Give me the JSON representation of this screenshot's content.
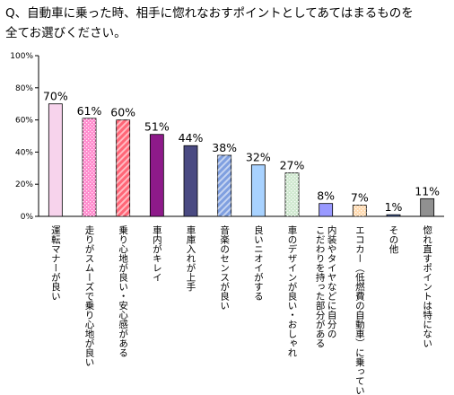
{
  "chart_data": {
    "type": "bar",
    "title": "Q、自動車に乗った時、相手に惚れなおすポイントとしてあてはまるものを\n全てお選びください。",
    "y_axis": {
      "ylim": [
        0,
        100
      ],
      "ticks": [
        0,
        20,
        40,
        60,
        80,
        100
      ],
      "tick_labels": [
        "0%",
        "20%",
        "40%",
        "60%",
        "80%",
        "100%"
      ]
    },
    "grid": false,
    "categories": [
      "運転マナーが良い",
      "走りがスムーズで乗り心地が良い",
      "乗り心地が良い・安心感がある",
      "車内がキレイ",
      "車庫入れが上手",
      "音楽のセンスが良い",
      "良いニオイがする",
      "車のデザインが良い・おしゃれ",
      "内装やタイヤなどに自分の\nこだわりを持った部分がある",
      "エコカー（低燃費の自動車）に乗っている",
      "その他",
      "惚れ直すポイントは特にない"
    ],
    "values": [
      70,
      61,
      60,
      51,
      44,
      38,
      32,
      27,
      8,
      7,
      1,
      11
    ],
    "value_labels": [
      "70%",
      "61%",
      "60%",
      "51%",
      "44%",
      "38%",
      "32%",
      "27%",
      "8%",
      "7%",
      "1%",
      "11%"
    ],
    "bar_styles": [
      {
        "fill": "#f7d3ec",
        "pattern": "none"
      },
      {
        "fill": "#ff88cc",
        "pattern": "dots"
      },
      {
        "fill": "#ff6677",
        "pattern": "diag"
      },
      {
        "fill": "#8e1a8a",
        "pattern": "none"
      },
      {
        "fill": "#4a4a82",
        "pattern": "none"
      },
      {
        "fill": "#7f9fe0",
        "pattern": "diag"
      },
      {
        "fill": "#a8d2ff",
        "pattern": "none"
      },
      {
        "fill": "#cfe8cf",
        "pattern": "dots"
      },
      {
        "fill": "#9999ff",
        "pattern": "none"
      },
      {
        "fill": "#ffdab0",
        "pattern": "dots"
      },
      {
        "fill": "#4e67a8",
        "pattern": "none"
      },
      {
        "fill": "#909090",
        "pattern": "none"
      }
    ]
  }
}
